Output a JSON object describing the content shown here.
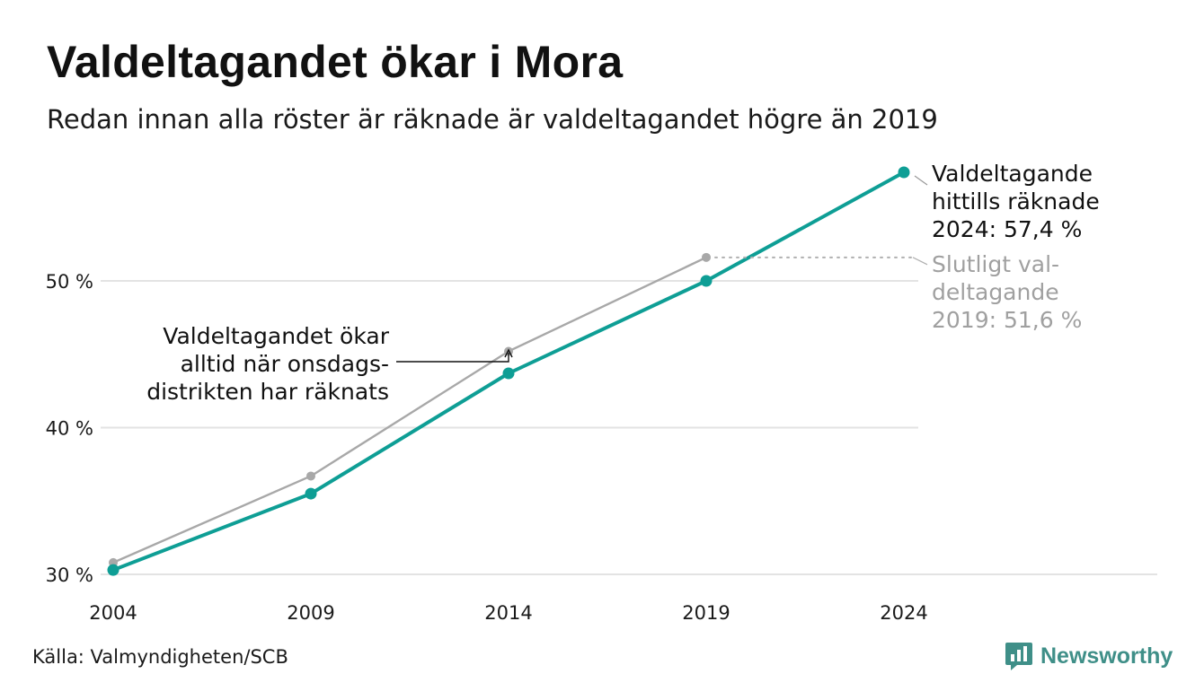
{
  "header": {
    "title": "Valdeltagandet ökar i Mora",
    "subtitle": "Redan innan alla röster är räknade är valdeltagandet högre än 2019"
  },
  "footer": {
    "source": "Källa: Valmyndigheten/SCB",
    "brand": "Newsworthy",
    "brand_icon": "newsworthy-logo-icon"
  },
  "colors": {
    "teal": "#0e9e95",
    "gray": "#a8a8a8",
    "grid": "#e3e3e3",
    "text": "#111111",
    "gray_text": "#a0a0a0",
    "brand": "#3f8f88"
  },
  "chart_data": {
    "type": "line",
    "x": [
      2004,
      2009,
      2014,
      2019,
      2024
    ],
    "xlabel": "",
    "ylabel": "",
    "ylim": [
      30,
      57.4
    ],
    "y_ticks": [
      30,
      40,
      50
    ],
    "y_tick_labels": [
      "30 %",
      "40 %",
      "50 %"
    ],
    "x_tick_labels": [
      "2004",
      "2009",
      "2014",
      "2019",
      "2024"
    ],
    "grid": true,
    "series": [
      {
        "key": "slutligt",
        "color": "#a8a8a8",
        "x": [
          2004,
          2009,
          2014,
          2019
        ],
        "values": [
          30.8,
          36.7,
          45.2,
          51.6
        ]
      },
      {
        "key": "hittills",
        "color": "#0e9e95",
        "x": [
          2004,
          2009,
          2014,
          2019,
          2024
        ],
        "values": [
          30.3,
          35.5,
          43.7,
          50.0,
          57.4
        ]
      }
    ],
    "annotations": {
      "current": {
        "lines": [
          "Valdeltagande",
          "hittills räknade",
          "2024: 57,4 %"
        ]
      },
      "final": {
        "lines": [
          "Slutligt val-",
          "deltagande",
          "2019: 51,6 %"
        ]
      },
      "note": {
        "lines": [
          "Valdeltagandet ökar",
          "alltid när onsdags-",
          "distrikten har räknats"
        ],
        "points_to_year": 2014
      }
    }
  }
}
